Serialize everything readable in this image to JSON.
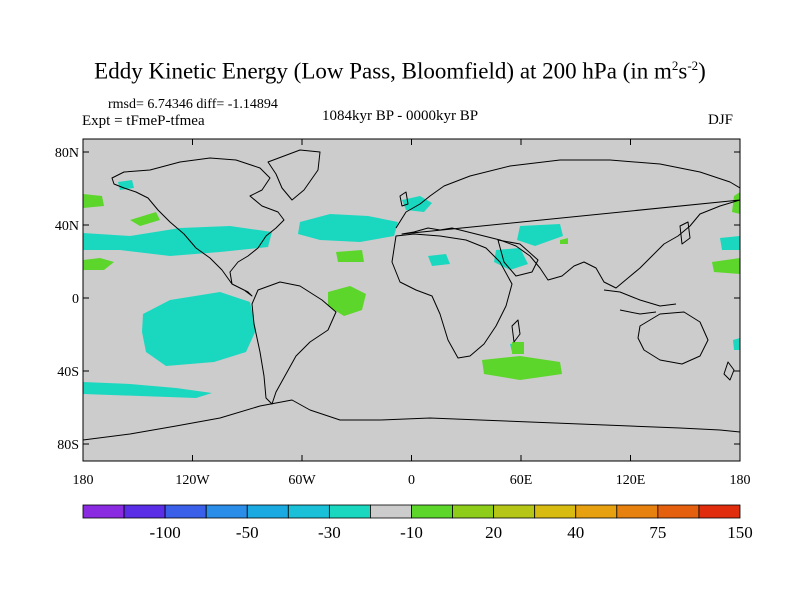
{
  "title": {
    "main": "Eddy Kinetic Energy (Low Pass, Bloomfield) at 200 hPa (in m",
    "sup1": "2",
    "mid": "s",
    "sup2": "-2",
    "end": ")"
  },
  "stats": "rmsd= 6.74346  diff= -1.14894",
  "expt": "Expt = tFmeP-tfmea",
  "period": "1084kyr BP - 0000kyr BP",
  "season": "DJF",
  "axes": {
    "y_ticks": [
      "80N",
      "40N",
      "0",
      "40S",
      "80S"
    ],
    "x_ticks": [
      "180",
      "120W",
      "60W",
      "0",
      "60E",
      "120E",
      "180"
    ]
  },
  "colorbar": {
    "colors": [
      "#8a2be2",
      "#5a2de6",
      "#3a5fe8",
      "#2a8de8",
      "#1aa9e0",
      "#19c0d8",
      "#1ad8c0",
      "#cccccc",
      "#5cd62a",
      "#8ecc1a",
      "#b5c616",
      "#d8bb10",
      "#e6a010",
      "#e6800f",
      "#e4600f",
      "#e02d0d"
    ],
    "labels": [
      "-100",
      "-50",
      "-30",
      "-10",
      "20",
      "40",
      "75",
      "150"
    ],
    "background_color": "#cccccc"
  }
}
